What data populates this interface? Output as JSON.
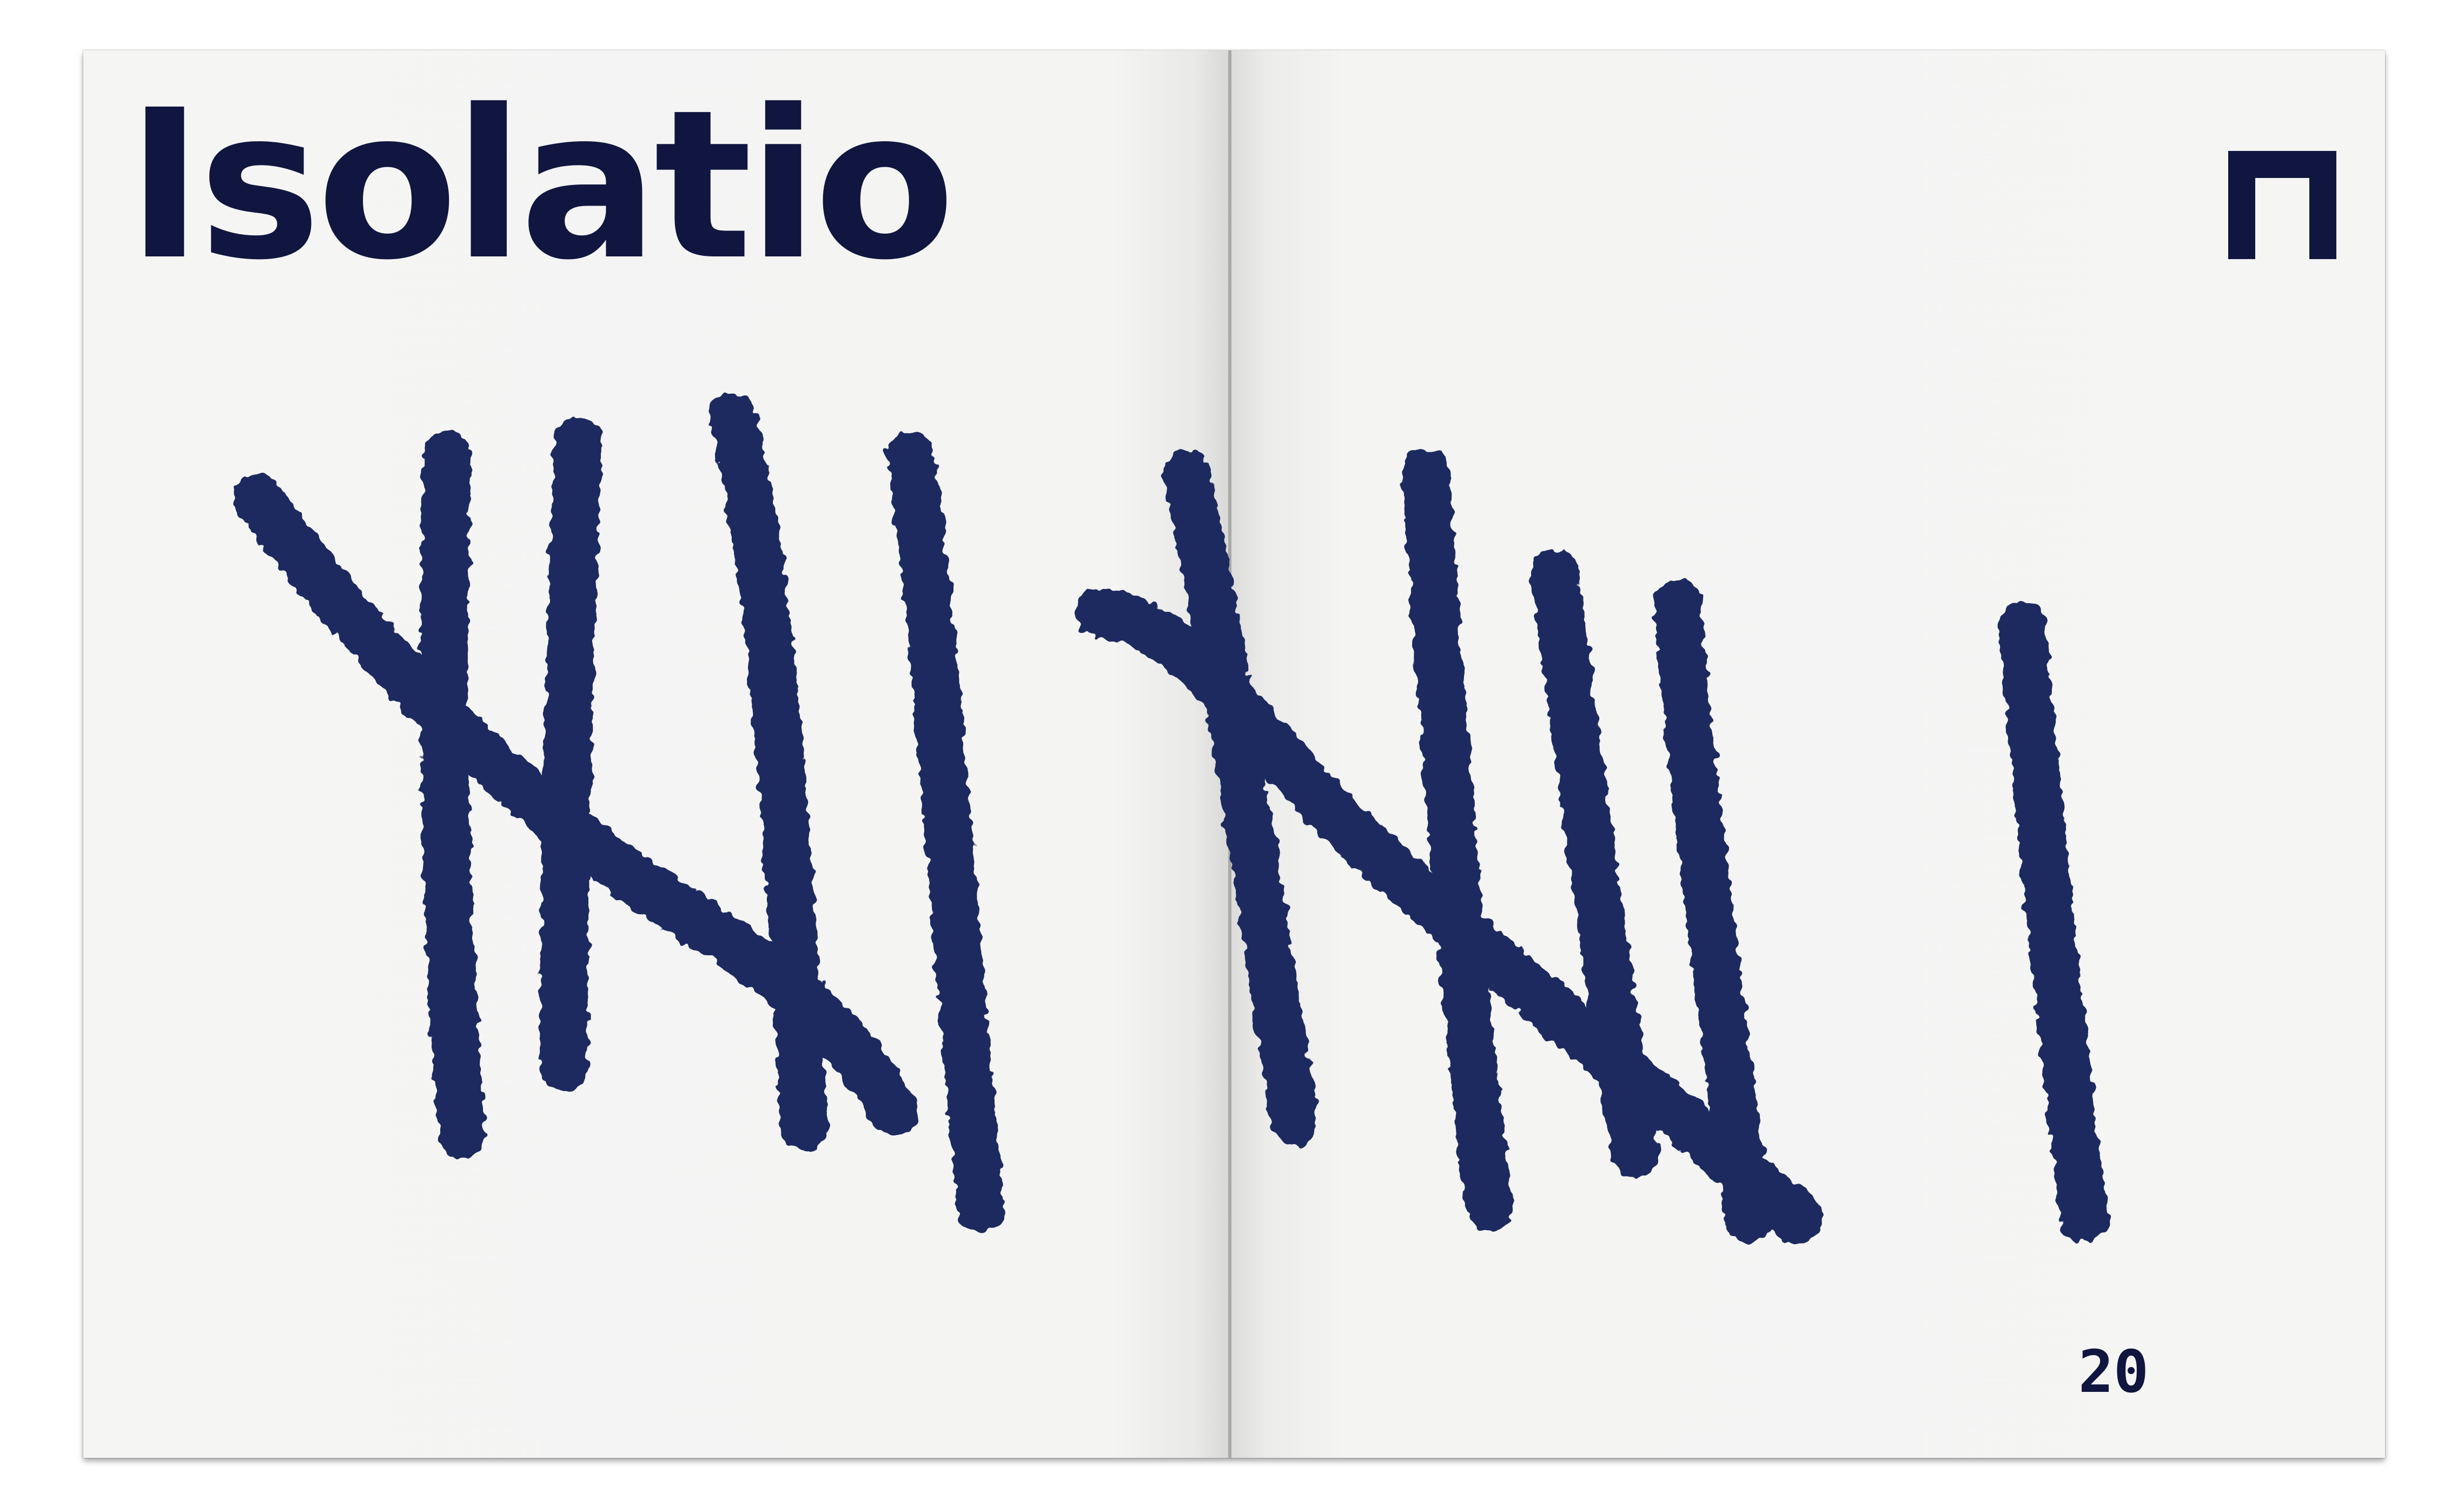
{
  "title": "Isolatio",
  "page_number": "20",
  "corner_icon": "bracket-n-icon",
  "tally_count": 11,
  "colors": {
    "ink": "#10163f",
    "marker": "#1c2a5e",
    "paper": "#f4f4f3"
  }
}
